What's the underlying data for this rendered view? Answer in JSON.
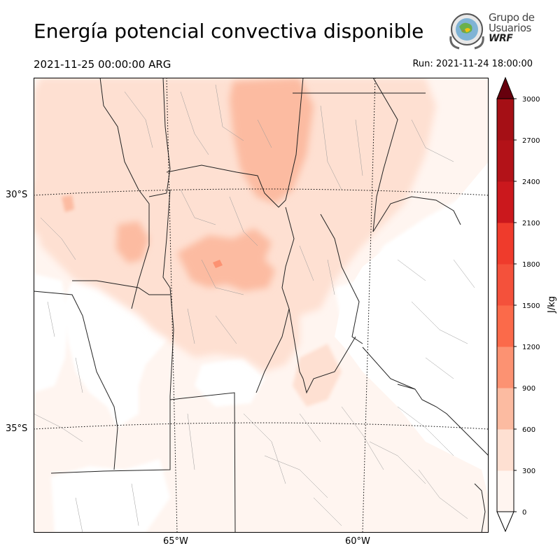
{
  "header": {
    "title": "Energía potencial convectiva disponible",
    "valid_time": "2021-11-25 00:00:00 ARG",
    "run_time": "Run: 2021-11-24 18:00:00"
  },
  "logo": {
    "line1": "Grupo de",
    "line2": "Usuarios",
    "line3": "WRF"
  },
  "map": {
    "lat_labels": [
      "30°S",
      "35°S"
    ],
    "lon_labels": [
      "65°W",
      "60°W"
    ]
  },
  "colorbar": {
    "unit_label": "J/kg",
    "tick_labels": [
      "0",
      "300",
      "600",
      "900",
      "1200",
      "1500",
      "1800",
      "2100",
      "2400",
      "2700",
      "3000"
    ],
    "colors": [
      "#fff5f0",
      "#fee0d2",
      "#fcbba1",
      "#fc9272",
      "#fb6a4a",
      "#f4513b",
      "#ef3b2c",
      "#cb181d",
      "#b31218",
      "#a50f15",
      "#67000d"
    ],
    "over_color": "#67000d",
    "under_color": "#ffffff"
  }
}
